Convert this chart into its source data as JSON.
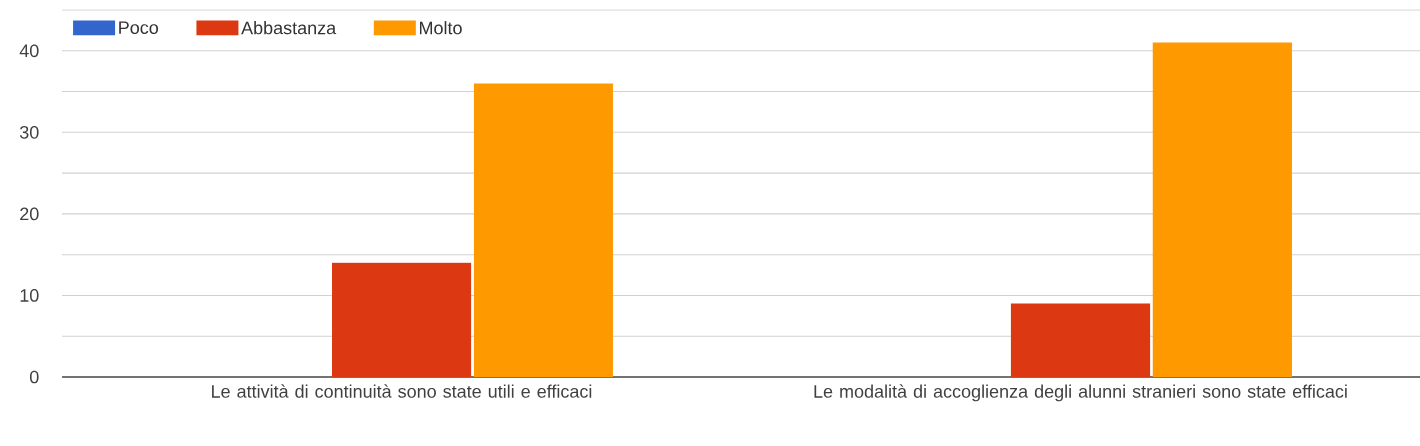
{
  "chart_data": {
    "type": "bar",
    "categories": [
      "Le attività di continuità sono state utili e efficaci",
      "Le modalità di accoglienza degli alunni stranieri sono state efficaci"
    ],
    "series": [
      {
        "name": "Poco",
        "color": "#3366cc",
        "values": [
          0,
          0
        ]
      },
      {
        "name": "Abbastanza",
        "color": "#dc3912",
        "values": [
          14,
          9
        ]
      },
      {
        "name": "Molto",
        "color": "#ff9900",
        "values": [
          36,
          41
        ]
      }
    ],
    "ylim": [
      0,
      45
    ],
    "yticks": [
      0,
      {
        "value": 5,
        "label": null
      },
      10,
      {
        "value": 15,
        "label": null
      },
      20,
      {
        "value": 25,
        "label": null
      },
      30,
      {
        "value": 35,
        "label": null
      },
      40,
      {
        "value": 45,
        "label": null
      }
    ],
    "grid": "y",
    "legend": "top left"
  }
}
